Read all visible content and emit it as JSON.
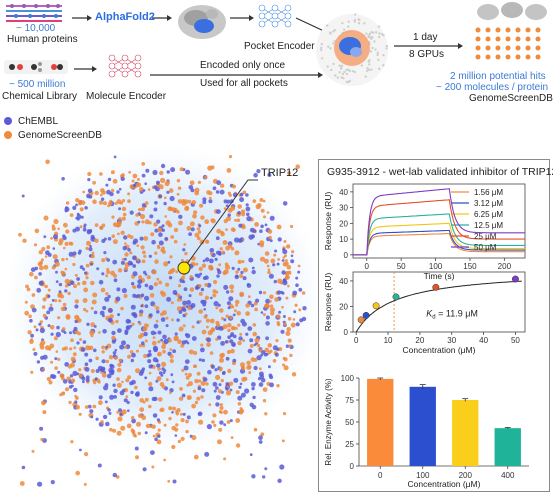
{
  "pipeline": {
    "proteins": {
      "count": "~ 10,000",
      "label": "Human proteins"
    },
    "alphafold": "AlphaFold2",
    "pocket_encoder": "Pocket Encoder",
    "chemicals": {
      "count": "~ 500 million",
      "label": "Chemical Library"
    },
    "molecule_encoder": "Molecule Encoder",
    "encoded_once": "Encoded only once",
    "used_for_all": "Used for all pockets",
    "time": "1 day",
    "gpus": "8 GPUs",
    "hits": "2 million potential hits",
    "per_protein": "~ 200 molecules / protein",
    "db": "GenomeScreenDB"
  },
  "legend": {
    "items": [
      {
        "label": "ChEMBL",
        "color": "#5b5bd6"
      },
      {
        "label": "GenomeScreenDB",
        "color": "#f08a3c"
      }
    ]
  },
  "callout": {
    "label": "TRIP12"
  },
  "panel": {
    "title": "G935-3912 - wet-lab validated inhibitor of TRIP12"
  },
  "chart_data": [
    {
      "type": "line",
      "xlabel": "Time (s)",
      "ylabel": "Response (RU)",
      "xlim": [
        -20,
        230
      ],
      "ylim": [
        -2,
        45
      ],
      "xticks": [
        0,
        50,
        100,
        150,
        200
      ],
      "yticks": [
        0,
        10,
        20,
        30,
        40
      ],
      "series": [
        {
          "name": "1.56 μM",
          "color": "#f08a3c",
          "plateau": 13.5,
          "end": 2
        },
        {
          "name": "3.12 μM",
          "color": "#2c4fd0",
          "plateau": 15.5,
          "end": 3
        },
        {
          "name": "6.25 μM",
          "color": "#f5c518",
          "plateau": 20,
          "end": 4
        },
        {
          "name": "12.5 μM",
          "color": "#2bb39a",
          "plateau": 26,
          "end": 6
        },
        {
          "name": "25 μM",
          "color": "#e8502a",
          "plateau": 35,
          "end": 10
        },
        {
          "name": "50 μM",
          "color": "#7d3cc8",
          "plateau": 42,
          "end": 14
        }
      ]
    },
    {
      "type": "scatter",
      "xlabel": "Concentration (μM)",
      "ylabel": "Response (RU)",
      "xlim": [
        -1,
        53
      ],
      "ylim": [
        0,
        47
      ],
      "xticks": [
        0,
        10,
        20,
        30,
        40,
        50
      ],
      "yticks": [
        0,
        20,
        40
      ],
      "annotation": "= 11.9 μM",
      "kd_symbol": "K",
      "kd_sub": "d",
      "kd": 11.9,
      "points": [
        {
          "x": 1.56,
          "y": 9.5,
          "color": "#f08a3c"
        },
        {
          "x": 3.12,
          "y": 13,
          "color": "#2c4fd0"
        },
        {
          "x": 6.25,
          "y": 20.5,
          "color": "#f5c518"
        },
        {
          "x": 12.5,
          "y": 27.5,
          "color": "#2bb39a"
        },
        {
          "x": 25,
          "y": 35,
          "color": "#e8502a"
        },
        {
          "x": 50,
          "y": 41.5,
          "color": "#7d3cc8"
        }
      ]
    },
    {
      "type": "bar",
      "xlabel": "Concentration (μM)",
      "ylabel": "Rel. Enzyme Activity (%)",
      "ylim": [
        0,
        100
      ],
      "yticks": [
        0,
        25,
        50,
        75,
        100
      ],
      "categories": [
        "0",
        "100",
        "200",
        "400"
      ],
      "values": [
        99,
        90,
        75,
        43
      ],
      "errors": [
        1,
        2.5,
        1.5,
        0.8
      ],
      "colors": [
        "#f98b3a",
        "#2c4fd0",
        "#f9cf1c",
        "#1fb39a"
      ]
    }
  ]
}
